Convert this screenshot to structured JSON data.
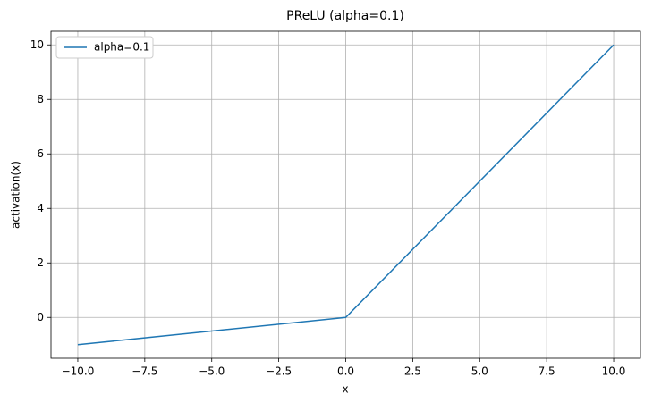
{
  "chart_data": {
    "type": "line",
    "title": "PReLU (alpha=0.1)",
    "xlabel": "x",
    "ylabel": "activation(x)",
    "x": [
      -10,
      0,
      10
    ],
    "series": [
      {
        "name": "alpha=0.1",
        "color": "#1f77b4",
        "values": [
          -1,
          0,
          10
        ]
      }
    ],
    "xlim": [
      -11,
      11
    ],
    "ylim": [
      -1.5,
      10.5
    ],
    "xticks": [
      {
        "value": -10,
        "label": "−10.0"
      },
      {
        "value": -7.5,
        "label": "−7.5"
      },
      {
        "value": -5,
        "label": "−5.0"
      },
      {
        "value": -2.5,
        "label": "−2.5"
      },
      {
        "value": 0,
        "label": "0.0"
      },
      {
        "value": 2.5,
        "label": "2.5"
      },
      {
        "value": 5,
        "label": "5.0"
      },
      {
        "value": 7.5,
        "label": "7.5"
      },
      {
        "value": 10,
        "label": "10.0"
      }
    ],
    "yticks": [
      0,
      2,
      4,
      6,
      8,
      10
    ],
    "grid": true,
    "legend": "upper-left"
  }
}
